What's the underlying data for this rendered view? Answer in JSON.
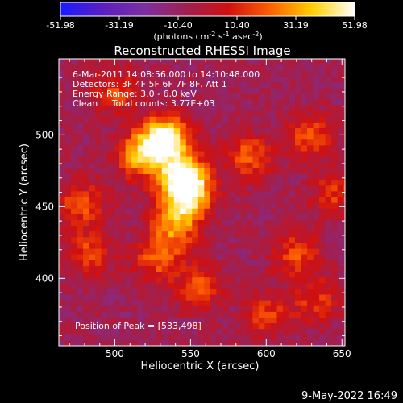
{
  "colorbar": {
    "tick_labels": [
      "-51.98",
      "-31.19",
      "-10.40",
      "10.40",
      "31.19",
      "51.98"
    ],
    "range": [
      -51.98,
      51.98
    ],
    "colors": [
      "#1a1aff",
      "#5a1fc0",
      "#7d2fa0",
      "#a02050",
      "#d01010",
      "#ff6000",
      "#ffd000",
      "#ffffff"
    ]
  },
  "colorbar_units": {
    "base": "(photons cm",
    "exp1": "-2",
    "mid1": " s",
    "exp2": "-1",
    "mid2": " asec",
    "exp3": "-2",
    "end": ")"
  },
  "chart_data": {
    "type": "heatmap",
    "title": "Reconstructed RHESSI Image",
    "xlabel": "Heliocentric X (arcsec)",
    "ylabel": "Heliocentric Y (arcsec)",
    "xlim": [
      463,
      652
    ],
    "ylim": [
      353,
      553
    ],
    "xticks": [
      500,
      550,
      600,
      650
    ],
    "yticks": [
      400,
      450,
      500
    ],
    "annotations": [
      "6-Mar-2011 14:08:56.000 to 14:10:48.000",
      "Detectors: 3F 4F 5F 6F 7F 8F, Att 1",
      "Energy Range: 3.0 - 6.0 keV",
      "Clean     Total counts: 3.77E+03"
    ],
    "peak_label": "Position of Peak = [533,498]",
    "peak": [
      533,
      498
    ],
    "sources": [
      {
        "x": 533,
        "y": 498,
        "peak": 51.98
      },
      {
        "x": 545,
        "y": 472,
        "peak": 46
      },
      {
        "x": 548,
        "y": 458,
        "peak": 42
      },
      {
        "x": 518,
        "y": 486,
        "peak": 34
      },
      {
        "x": 540,
        "y": 437,
        "peak": 26
      },
      {
        "x": 528,
        "y": 415,
        "peak": 20
      },
      {
        "x": 556,
        "y": 395,
        "peak": 18
      },
      {
        "x": 478,
        "y": 452,
        "peak": 18
      },
      {
        "x": 482,
        "y": 418,
        "peak": 16
      },
      {
        "x": 588,
        "y": 485,
        "peak": 20
      },
      {
        "x": 628,
        "y": 500,
        "peak": 18
      },
      {
        "x": 620,
        "y": 418,
        "peak": 18
      },
      {
        "x": 645,
        "y": 460,
        "peak": 14
      },
      {
        "x": 600,
        "y": 375,
        "peak": 14
      },
      {
        "x": 500,
        "y": 530,
        "peak": 16
      },
      {
        "x": 633,
        "y": 385,
        "peak": 14
      }
    ]
  },
  "footer": {
    "date": "9-May-2022 16:49"
  }
}
